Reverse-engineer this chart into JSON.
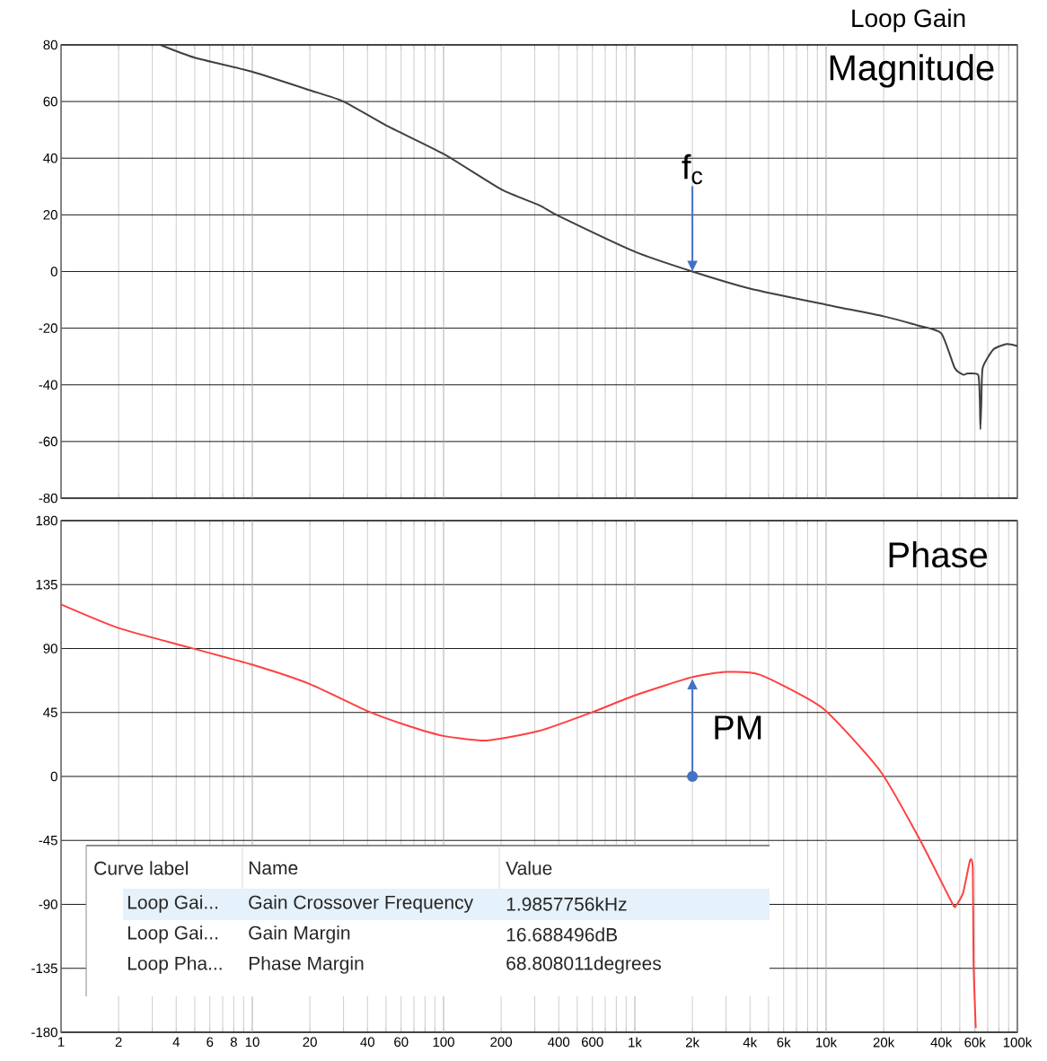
{
  "chart_data": [
    {
      "type": "line",
      "title": "Loop Gain",
      "subtitle": "Magnitude",
      "log": "x",
      "grid": true,
      "tick_labels": "y",
      "xlim": [
        1,
        100000
      ],
      "ylim": [
        -80,
        80
      ],
      "yticks": [
        -80,
        -60,
        -40,
        -20,
        0,
        20,
        40,
        60,
        80
      ],
      "xticks": [
        1,
        2,
        {
          "value": 3,
          "label": null
        },
        4,
        {
          "value": 5,
          "label": null
        },
        6,
        {
          "value": 7,
          "label": null
        },
        8,
        {
          "value": 9,
          "label": null
        },
        10,
        20,
        {
          "value": 30,
          "label": null
        },
        40,
        {
          "value": 50,
          "label": null
        },
        60,
        {
          "value": 70,
          "label": null
        },
        {
          "value": 80,
          "label": null
        },
        {
          "value": 90,
          "label": null
        },
        100,
        200,
        {
          "value": 300,
          "label": null
        },
        400,
        {
          "value": 500,
          "label": null
        },
        600,
        {
          "value": 700,
          "label": null
        },
        {
          "value": 800,
          "label": null
        },
        {
          "value": 900,
          "label": null
        },
        {
          "value": 1000,
          "label": null
        },
        {
          "value": 2000,
          "label": null
        },
        {
          "value": 3000,
          "label": null
        },
        {
          "value": 4000,
          "label": null
        },
        {
          "value": 5000,
          "label": null
        },
        {
          "value": 6000,
          "label": null
        },
        {
          "value": 7000,
          "label": null
        },
        {
          "value": 8000,
          "label": null
        },
        {
          "value": 9000,
          "label": null
        },
        {
          "value": 10000,
          "label": null
        },
        {
          "value": 20000,
          "label": null
        },
        {
          "value": 30000,
          "label": null
        },
        {
          "value": 40000,
          "label": null
        },
        {
          "value": 50000,
          "label": null
        },
        {
          "value": 60000,
          "label": null
        },
        {
          "value": 70000,
          "label": null
        },
        {
          "value": 80000,
          "label": null
        },
        {
          "value": 90000,
          "label": null
        },
        {
          "value": 100000,
          "label": null
        }
      ],
      "series": [
        {
          "color": "#404040",
          "x": [
            3.3,
            5,
            10,
            20,
            30,
            50,
            100,
            200,
            316,
            400,
            1000,
            2000,
            4000,
            10000,
            20000,
            30000,
            40000,
            47000,
            52000,
            55000,
            62400,
            63600,
            64100,
            64900,
            65900,
            75000,
            88000,
            100000
          ],
          "values": [
            80,
            75.5,
            70.5,
            64,
            60,
            51.6,
            41.5,
            29,
            23.4,
            19.6,
            7,
            0,
            -6,
            -11.7,
            -15.8,
            -19,
            -21.8,
            -34,
            -36.4,
            -36,
            -36.5,
            -45,
            -55.7,
            -45,
            -34,
            -27.5,
            -25.6,
            -26.3
          ]
        }
      ],
      "annotations": [
        {
          "text": "f$_{c}$",
          "x": 2000,
          "y": 0
        }
      ]
    },
    {
      "type": "line",
      "title": "Phase",
      "log": "x",
      "grid": true,
      "xlim": [
        1,
        100000
      ],
      "ylim": [
        -180,
        180
      ],
      "yticks": [
        -180,
        -135,
        -90,
        -45,
        0,
        45,
        90,
        135,
        180
      ],
      "xticks": [
        1,
        2,
        {
          "value": 3,
          "label": null
        },
        4,
        {
          "value": 5,
          "label": null
        },
        6,
        {
          "value": 7,
          "label": null
        },
        8,
        {
          "value": 9,
          "label": null
        },
        10,
        20,
        {
          "value": 30,
          "label": null
        },
        40,
        {
          "value": 50,
          "label": null
        },
        60,
        {
          "value": 70,
          "label": null
        },
        {
          "value": 80,
          "label": null
        },
        {
          "value": 90,
          "label": null
        },
        100,
        200,
        {
          "value": 300,
          "label": null
        },
        400,
        {
          "value": 500,
          "label": null
        },
        600,
        {
          "value": 700,
          "label": null
        },
        {
          "value": 800,
          "label": null
        },
        {
          "value": 900,
          "label": null
        },
        {
          "value": 1000,
          "label": "1k"
        },
        {
          "value": 2000,
          "label": "2k"
        },
        {
          "value": 3000,
          "label": null
        },
        {
          "value": 4000,
          "label": "4k"
        },
        {
          "value": 5000,
          "label": null
        },
        {
          "value": 6000,
          "label": "6k"
        },
        {
          "value": 7000,
          "label": null
        },
        {
          "value": 8000,
          "label": null
        },
        {
          "value": 9000,
          "label": null
        },
        {
          "value": 10000,
          "label": "10k"
        },
        {
          "value": 20000,
          "label": "20k"
        },
        {
          "value": 30000,
          "label": null
        },
        {
          "value": 40000,
          "label": "40k"
        },
        {
          "value": 50000,
          "label": null
        },
        {
          "value": 60000,
          "label": "60k"
        },
        {
          "value": 70000,
          "label": null
        },
        {
          "value": 80000,
          "label": null
        },
        {
          "value": 90000,
          "label": null
        },
        {
          "value": 100000,
          "label": "100k"
        }
      ],
      "series": [
        {
          "color": "#ff4040",
          "x": [
            1,
            1.98,
            4.6,
            10,
            20,
            40,
            64,
            100,
            168,
            316,
            610,
            1000,
            1970,
            3000,
            4500,
            9600,
            19200,
            30500,
            45600,
            47600,
            52000,
            56600,
            58500,
            59000,
            60600
          ],
          "values": [
            121,
            104.6,
            91,
            78.6,
            65,
            46,
            36,
            28.5,
            25.3,
            32,
            45.6,
            57,
            69.7,
            73.5,
            71.6,
            48,
            3.8,
            -43,
            -89,
            -91,
            -82,
            -59,
            -65,
            -130.5,
            -177
          ]
        }
      ],
      "annotations": [
        {
          "text": "PM",
          "x": 2000,
          "y": 68.8
        },
        "Curve label",
        "Name",
        "Value",
        "Loop Gai...",
        "Gain Crossover Frequency",
        "1.9857756kHz",
        "Loop Gai...",
        "Gain Margin",
        "16.688496dB",
        "Loop Pha...",
        "Phase Margin",
        "68.808011degrees"
      ]
    }
  ]
}
